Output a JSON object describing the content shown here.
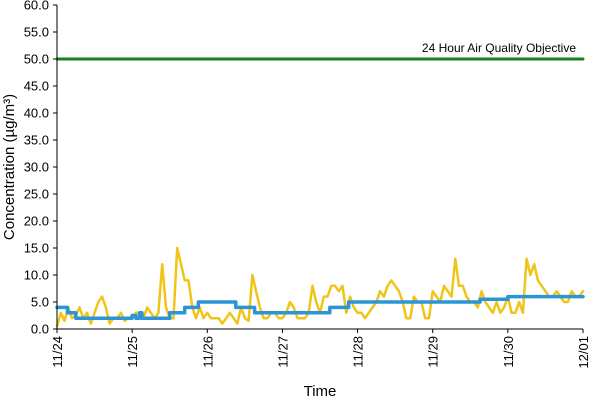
{
  "chart_data": {
    "type": "line",
    "xlabel": "Time",
    "ylabel": "Concentration (µg/m³)",
    "ylim": [
      0,
      60
    ],
    "yticks": [
      "0.0",
      "5.0",
      "10.0",
      "15.0",
      "20.0",
      "25.0",
      "30.0",
      "35.0",
      "40.0",
      "45.0",
      "50.0",
      "55.0",
      "60.0"
    ],
    "xlim": [
      "11/24",
      "12/01"
    ],
    "xticks": [
      "11/24",
      "11/25",
      "11/26",
      "11/27",
      "11/28",
      "11/29",
      "11/30",
      "12/01"
    ],
    "grid": false,
    "annotation": "24 Hour Air Quality Objective",
    "colors": {
      "objective": "#1a7f1a",
      "hourly": "#f0c419",
      "daily": "#2b95d6"
    },
    "series": [
      {
        "key": "objective",
        "x": [
          0,
          7
        ],
        "values": [
          50,
          50
        ]
      },
      {
        "key": "hourly",
        "x": [
          0.0,
          0.05,
          0.1,
          0.15,
          0.2,
          0.25,
          0.3,
          0.35,
          0.4,
          0.45,
          0.5,
          0.55,
          0.6,
          0.65,
          0.7,
          0.75,
          0.8,
          0.85,
          0.9,
          0.95,
          1.0,
          1.05,
          1.1,
          1.15,
          1.2,
          1.25,
          1.3,
          1.35,
          1.4,
          1.45,
          1.5,
          1.55,
          1.6,
          1.65,
          1.7,
          1.75,
          1.8,
          1.85,
          1.9,
          1.95,
          2.0,
          2.05,
          2.1,
          2.15,
          2.2,
          2.25,
          2.3,
          2.35,
          2.4,
          2.45,
          2.5,
          2.55,
          2.6,
          2.65,
          2.7,
          2.75,
          2.8,
          2.85,
          2.9,
          2.95,
          3.0,
          3.05,
          3.1,
          3.15,
          3.2,
          3.25,
          3.3,
          3.35,
          3.4,
          3.45,
          3.5,
          3.55,
          3.6,
          3.65,
          3.7,
          3.75,
          3.8,
          3.85,
          3.9,
          3.95,
          4.0,
          4.05,
          4.1,
          4.15,
          4.2,
          4.25,
          4.3,
          4.35,
          4.4,
          4.45,
          4.5,
          4.55,
          4.6,
          4.65,
          4.7,
          4.75,
          4.8,
          4.85,
          4.9,
          4.95,
          5.0,
          5.05,
          5.1,
          5.15,
          5.2,
          5.25,
          5.3,
          5.35,
          5.4,
          5.45,
          5.5,
          5.55,
          5.6,
          5.65,
          5.7,
          5.75,
          5.8,
          5.85,
          5.9,
          5.95,
          6.0,
          6.05,
          6.1,
          6.15,
          6.2,
          6.25,
          6.3,
          6.35,
          6.4,
          6.45,
          6.5,
          6.55,
          6.6,
          6.65,
          6.7,
          6.75,
          6.8,
          6.85,
          6.9,
          6.95,
          7.0
        ],
        "values": [
          0.5,
          3,
          1.5,
          4,
          2,
          2.5,
          4,
          2,
          3,
          1,
          3,
          5,
          6,
          4,
          1,
          2,
          2,
          3,
          1.5,
          2,
          2,
          3,
          3,
          2,
          4,
          3,
          2,
          3,
          12,
          4,
          2,
          2,
          15,
          12,
          9,
          9,
          4,
          2,
          4,
          2,
          3,
          2,
          2,
          2,
          1,
          2,
          3,
          2,
          1,
          4,
          2,
          1.5,
          10,
          7,
          4,
          2,
          2,
          3,
          3,
          2,
          2,
          3,
          5,
          4,
          2,
          2,
          2,
          3,
          8,
          5,
          3,
          6,
          6,
          8,
          8,
          7,
          8,
          3,
          6,
          4,
          3,
          3,
          2,
          3,
          4,
          5,
          7,
          6,
          8,
          9,
          8,
          7,
          5,
          2,
          2,
          6,
          5,
          5,
          2,
          2,
          7,
          6,
          5,
          8,
          7,
          6,
          13,
          8,
          8,
          6,
          5,
          5,
          4,
          7,
          5,
          4,
          3,
          5,
          3,
          4,
          6,
          3,
          3,
          5,
          3,
          13,
          10,
          12,
          9,
          8,
          7,
          6,
          6,
          7,
          6,
          5,
          5,
          7,
          6,
          6,
          7
        ]
      },
      {
        "key": "daily",
        "x": [
          0.0,
          0.14,
          0.14,
          0.25,
          0.25,
          0.75,
          0.75,
          1.0,
          1.0,
          1.05,
          1.05,
          1.1,
          1.1,
          1.13,
          1.13,
          1.2,
          1.2,
          1.5,
          1.5,
          1.7,
          1.7,
          1.88,
          1.88,
          2.38,
          2.38,
          2.63,
          2.63,
          3.38,
          3.38,
          3.63,
          3.63,
          3.88,
          3.88,
          4.5,
          4.5,
          5.0,
          5.0,
          5.63,
          5.63,
          6.0,
          6.0,
          6.33,
          6.33,
          7.0
        ],
        "values": [
          4,
          4,
          3,
          3,
          2,
          2,
          2,
          2,
          2.5,
          2.5,
          2,
          2,
          3,
          3,
          2,
          2,
          2,
          2,
          3,
          3,
          4,
          4,
          5,
          5,
          4,
          4,
          3,
          3,
          3,
          3,
          4,
          4,
          5,
          5,
          5,
          5,
          5,
          5,
          5.5,
          5.5,
          6,
          6,
          6,
          6
        ]
      }
    ]
  }
}
